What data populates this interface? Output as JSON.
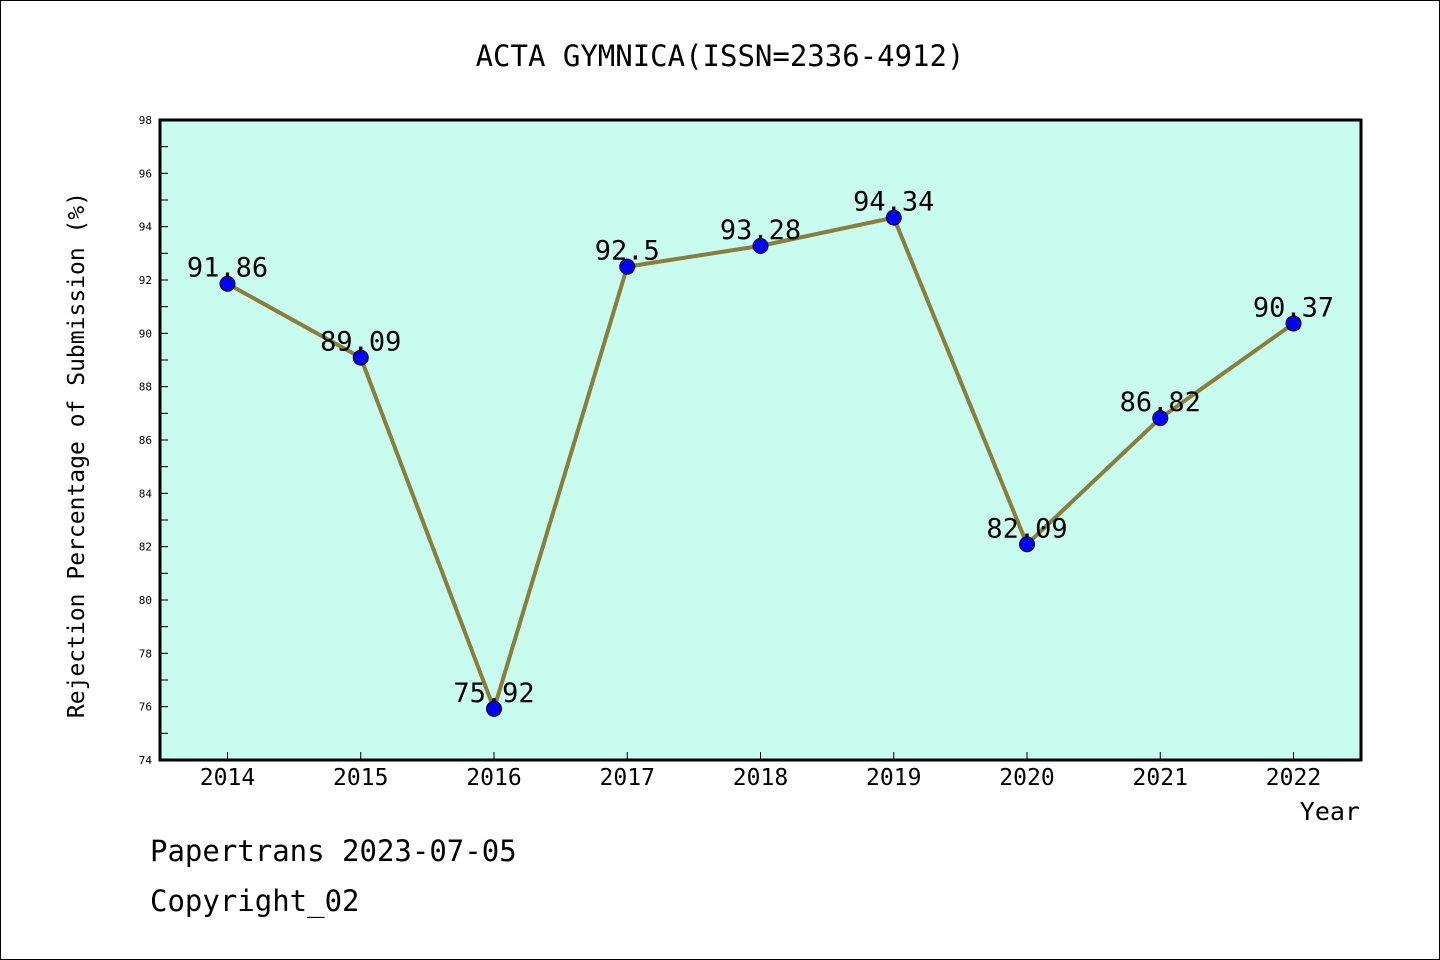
{
  "chart_data": {
    "type": "line",
    "title": "ACTA GYMNICA(ISSN=2336-4912)",
    "xlabel": "Year",
    "ylabel": "Rejection Percentage of Submission (%)",
    "categories": [
      "2014",
      "2015",
      "2016",
      "2017",
      "2018",
      "2019",
      "2020",
      "2021",
      "2022"
    ],
    "values": [
      91.86,
      89.09,
      75.92,
      92.5,
      93.28,
      94.34,
      82.09,
      86.82,
      90.37
    ],
    "data_labels": [
      "91.86",
      "89.09",
      "75.92",
      "92.5",
      "93.28",
      "94.34",
      "82.09",
      "86.82",
      "90.37"
    ],
    "ylim": [
      74,
      98
    ],
    "yticks": [
      "74",
      "76",
      "78",
      "80",
      "82",
      "84",
      "86",
      "88",
      "90",
      "92",
      "94",
      "96",
      "98"
    ],
    "grid": false,
    "legend": "none",
    "colors": {
      "plot_background": "#c8fcee",
      "line": "#8b7d3a",
      "marker": "#0000ff"
    }
  },
  "footer": {
    "line1": "Papertrans 2023-07-05",
    "line2": "Copyright_02"
  }
}
